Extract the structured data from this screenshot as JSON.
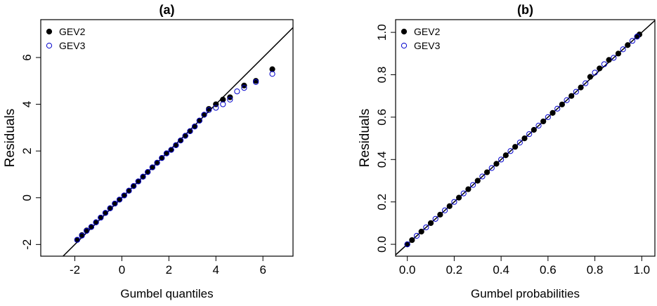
{
  "chart_data": [
    {
      "type": "scatter",
      "title": "(a)",
      "x_label": "Gumbel quantiles",
      "y_label": "Residuals",
      "xlim": [
        -3.45,
        7.28
      ],
      "ylim": [
        -2.5,
        7.62
      ],
      "xticks": [
        -2,
        0,
        2,
        4,
        6
      ],
      "yticks": [
        -2,
        0,
        2,
        4,
        6
      ],
      "legend": "top-left",
      "series": [
        {
          "name": "GEV2",
          "color": "#000000",
          "marker": "filled",
          "x": [
            -1.9,
            -1.7,
            -1.5,
            -1.3,
            -1.1,
            -0.9,
            -0.7,
            -0.5,
            -0.3,
            -0.1,
            0.1,
            0.3,
            0.5,
            0.7,
            0.9,
            1.1,
            1.3,
            1.5,
            1.7,
            1.9,
            2.1,
            2.3,
            2.5,
            2.7,
            2.9,
            3.1,
            3.3,
            3.5,
            3.7,
            4.0,
            4.3,
            4.6,
            5.2,
            5.7,
            6.4
          ],
          "values": [
            -1.8,
            -1.6,
            -1.4,
            -1.25,
            -1.05,
            -0.85,
            -0.65,
            -0.45,
            -0.25,
            -0.08,
            0.1,
            0.3,
            0.5,
            0.7,
            0.9,
            1.1,
            1.3,
            1.5,
            1.7,
            1.9,
            2.05,
            2.25,
            2.45,
            2.65,
            2.85,
            3.05,
            3.3,
            3.55,
            3.8,
            4.0,
            4.2,
            4.3,
            4.8,
            5.0,
            5.5
          ]
        },
        {
          "name": "GEV3",
          "color": "#0000cc",
          "marker": "open",
          "x": [
            -1.9,
            -1.7,
            -1.5,
            -1.3,
            -1.1,
            -0.9,
            -0.7,
            -0.5,
            -0.3,
            -0.1,
            0.1,
            0.3,
            0.5,
            0.7,
            0.9,
            1.1,
            1.3,
            1.5,
            1.7,
            1.9,
            2.1,
            2.3,
            2.5,
            2.7,
            2.9,
            3.1,
            3.3,
            3.5,
            3.7,
            4.0,
            4.3,
            4.6,
            4.9,
            5.2,
            5.7,
            6.4
          ],
          "values": [
            -1.8,
            -1.62,
            -1.42,
            -1.25,
            -1.05,
            -0.85,
            -0.65,
            -0.45,
            -0.25,
            -0.08,
            0.1,
            0.3,
            0.5,
            0.7,
            0.9,
            1.1,
            1.3,
            1.5,
            1.7,
            1.9,
            2.05,
            2.25,
            2.45,
            2.65,
            2.85,
            3.05,
            3.3,
            3.55,
            3.75,
            3.85,
            4.0,
            4.2,
            4.55,
            4.7,
            4.95,
            5.3
          ]
        }
      ]
    },
    {
      "type": "scatter",
      "title": "(b)",
      "x_label": "Gumbel probabilities",
      "y_label": "Residuals",
      "xlim": [
        -0.05,
        1.056
      ],
      "ylim": [
        -0.056,
        1.06
      ],
      "xticks": [
        {
          "value": 0,
          "label": "0.0"
        },
        0.2,
        0.4,
        0.6,
        0.8,
        {
          "value": 1,
          "label": "1.0"
        }
      ],
      "yticks": [
        {
          "value": 0,
          "label": "0.0"
        },
        0.2,
        0.4,
        0.6,
        0.8,
        {
          "value": 1,
          "label": "1.0"
        }
      ],
      "legend": "top-left",
      "series": [
        {
          "name": "GEV2",
          "color": "#000000",
          "marker": "filled",
          "x": [
            0.0,
            0.02,
            0.06,
            0.1,
            0.14,
            0.18,
            0.22,
            0.26,
            0.3,
            0.34,
            0.38,
            0.42,
            0.46,
            0.5,
            0.54,
            0.58,
            0.62,
            0.66,
            0.7,
            0.74,
            0.78,
            0.82,
            0.86,
            0.9,
            0.94,
            0.98,
            0.99
          ],
          "values": [
            0.0,
            0.02,
            0.06,
            0.1,
            0.14,
            0.18,
            0.22,
            0.26,
            0.3,
            0.34,
            0.38,
            0.42,
            0.46,
            0.5,
            0.54,
            0.58,
            0.62,
            0.66,
            0.7,
            0.74,
            0.79,
            0.83,
            0.87,
            0.9,
            0.94,
            0.98,
            0.99
          ]
        },
        {
          "name": "GEV3",
          "color": "#0000cc",
          "marker": "open",
          "x": [
            0.0,
            0.04,
            0.08,
            0.12,
            0.16,
            0.2,
            0.24,
            0.28,
            0.32,
            0.36,
            0.4,
            0.44,
            0.48,
            0.52,
            0.56,
            0.6,
            0.64,
            0.68,
            0.72,
            0.76,
            0.8,
            0.84,
            0.88,
            0.92,
            0.96,
            0.98
          ],
          "values": [
            0.0,
            0.04,
            0.08,
            0.12,
            0.16,
            0.2,
            0.24,
            0.28,
            0.32,
            0.36,
            0.4,
            0.44,
            0.48,
            0.52,
            0.56,
            0.6,
            0.64,
            0.68,
            0.72,
            0.76,
            0.81,
            0.85,
            0.88,
            0.92,
            0.96,
            0.98
          ]
        }
      ]
    }
  ]
}
